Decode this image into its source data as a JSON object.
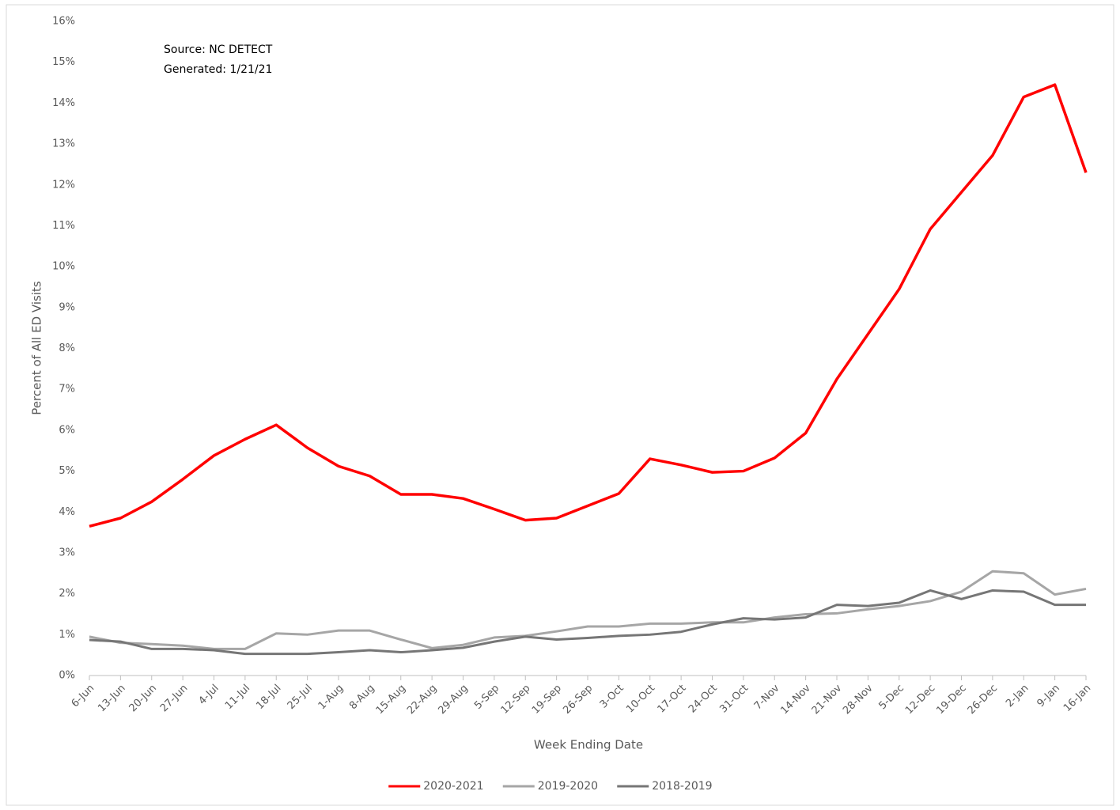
{
  "chart_data": {
    "type": "line",
    "annotations": [
      "Source: NC DETECT",
      "Generated:  1/21/21"
    ],
    "x_label": "Week Ending Date",
    "y_label": "Percent of All ED Visits",
    "categories": [
      "6-Jun",
      "13-Jun",
      "20-Jun",
      "27-Jun",
      "4-Jul",
      "11-Jul",
      "18-Jul",
      "25-Jul",
      "1-Aug",
      "8-Aug",
      "15-Aug",
      "22-Aug",
      "29-Aug",
      "5-Sep",
      "12-Sep",
      "19-Sep",
      "26-Sep",
      "3-Oct",
      "10-Oct",
      "17-Oct",
      "24-Oct",
      "31-Oct",
      "7-Nov",
      "14-Nov",
      "21-Nov",
      "28-Nov",
      "5-Dec",
      "12-Dec",
      "19-Dec",
      "26-Dec",
      "2-Jan",
      "9-Jan",
      "16-Jan"
    ],
    "series": [
      {
        "name": "2020-2021",
        "color": "#ff0000",
        "values": [
          3.65,
          3.85,
          4.25,
          4.8,
          5.38,
          5.78,
          6.13,
          5.57,
          5.12,
          4.88,
          4.43,
          4.43,
          4.33,
          4.07,
          3.8,
          3.85,
          4.15,
          4.45,
          5.3,
          5.15,
          4.97,
          5.0,
          5.32,
          5.93,
          7.25,
          8.35,
          9.45,
          10.92,
          11.82,
          12.72,
          14.15,
          14.45,
          12.3
        ]
      },
      {
        "name": "2019-2020",
        "color": "#a6a6a6",
        "values": [
          0.95,
          0.8,
          0.77,
          0.73,
          0.65,
          0.65,
          1.03,
          1.0,
          1.1,
          1.1,
          0.88,
          0.67,
          0.75,
          0.93,
          0.97,
          1.08,
          1.2,
          1.2,
          1.27,
          1.27,
          1.3,
          1.3,
          1.42,
          1.5,
          1.52,
          1.62,
          1.7,
          1.82,
          2.05,
          2.55,
          2.5,
          1.98,
          2.12
        ]
      },
      {
        "name": "2018-2019",
        "color": "#767676",
        "values": [
          0.87,
          0.83,
          0.65,
          0.65,
          0.62,
          0.53,
          0.53,
          0.53,
          0.57,
          0.62,
          0.57,
          0.62,
          0.68,
          0.83,
          0.95,
          0.88,
          0.92,
          0.97,
          1.0,
          1.07,
          1.25,
          1.4,
          1.37,
          1.42,
          1.73,
          1.7,
          1.78,
          2.08,
          1.87,
          2.08,
          2.05,
          1.73,
          1.73
        ]
      }
    ],
    "ylim": [
      0,
      16
    ],
    "yticks": [
      {
        "value": 0,
        "label": "0%"
      },
      {
        "value": 1,
        "label": "1%"
      },
      {
        "value": 2,
        "label": "2%"
      },
      {
        "value": 3,
        "label": "3%"
      },
      {
        "value": 4,
        "label": "4%"
      },
      {
        "value": 5,
        "label": "5%"
      },
      {
        "value": 6,
        "label": "6%"
      },
      {
        "value": 7,
        "label": "7%"
      },
      {
        "value": 8,
        "label": "8%"
      },
      {
        "value": 9,
        "label": "9%"
      },
      {
        "value": 10,
        "label": "10%"
      },
      {
        "value": 11,
        "label": "11%"
      },
      {
        "value": 12,
        "label": "12%"
      },
      {
        "value": 13,
        "label": "13%"
      },
      {
        "value": 14,
        "label": "14%"
      },
      {
        "value": 15,
        "label": "15%"
      },
      {
        "value": 16,
        "label": "16%"
      }
    ],
    "grid": false,
    "legend": "bottom"
  }
}
